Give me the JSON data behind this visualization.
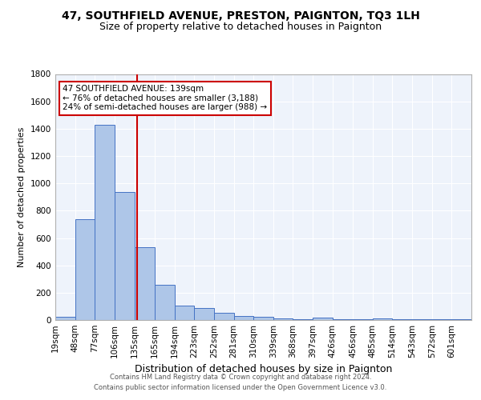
{
  "title1": "47, SOUTHFIELD AVENUE, PRESTON, PAIGNTON, TQ3 1LH",
  "title2": "Size of property relative to detached houses in Paignton",
  "xlabel": "Distribution of detached houses by size in Paignton",
  "ylabel": "Number of detached properties",
  "footer1": "Contains HM Land Registry data © Crown copyright and database right 2024.",
  "footer2": "Contains public sector information licensed under the Open Government Licence v3.0.",
  "bin_labels": [
    "19sqm",
    "48sqm",
    "77sqm",
    "106sqm",
    "135sqm",
    "165sqm",
    "194sqm",
    "223sqm",
    "252sqm",
    "281sqm",
    "310sqm",
    "339sqm",
    "368sqm",
    "397sqm",
    "426sqm",
    "456sqm",
    "485sqm",
    "514sqm",
    "543sqm",
    "572sqm",
    "601sqm"
  ],
  "bin_edges": [
    19,
    48,
    77,
    106,
    135,
    165,
    194,
    223,
    252,
    281,
    310,
    339,
    368,
    397,
    426,
    456,
    485,
    514,
    543,
    572,
    601,
    630
  ],
  "values": [
    25,
    740,
    1430,
    935,
    535,
    260,
    105,
    90,
    50,
    30,
    25,
    10,
    5,
    15,
    5,
    3,
    12,
    3,
    3,
    3,
    3
  ],
  "bar_facecolor": "#aec6e8",
  "bar_edgecolor": "#4472c4",
  "property_size": 139,
  "vline_color": "#cc0000",
  "annotation_line1": "47 SOUTHFIELD AVENUE: 139sqm",
  "annotation_line2": "← 76% of detached houses are smaller (3,188)",
  "annotation_line3": "24% of semi-detached houses are larger (988) →",
  "annotation_bbox_edgecolor": "#cc0000",
  "annotation_bbox_facecolor": "#ffffff",
  "ylim": [
    0,
    1800
  ],
  "yticks": [
    0,
    200,
    400,
    600,
    800,
    1000,
    1200,
    1400,
    1600,
    1800
  ],
  "background_color": "#eef3fb",
  "grid_color": "#ffffff",
  "title1_fontsize": 10,
  "title2_fontsize": 9,
  "xlabel_fontsize": 9,
  "ylabel_fontsize": 8,
  "tick_fontsize": 7.5,
  "annotation_fontsize": 7.5,
  "footer_fontsize": 6
}
